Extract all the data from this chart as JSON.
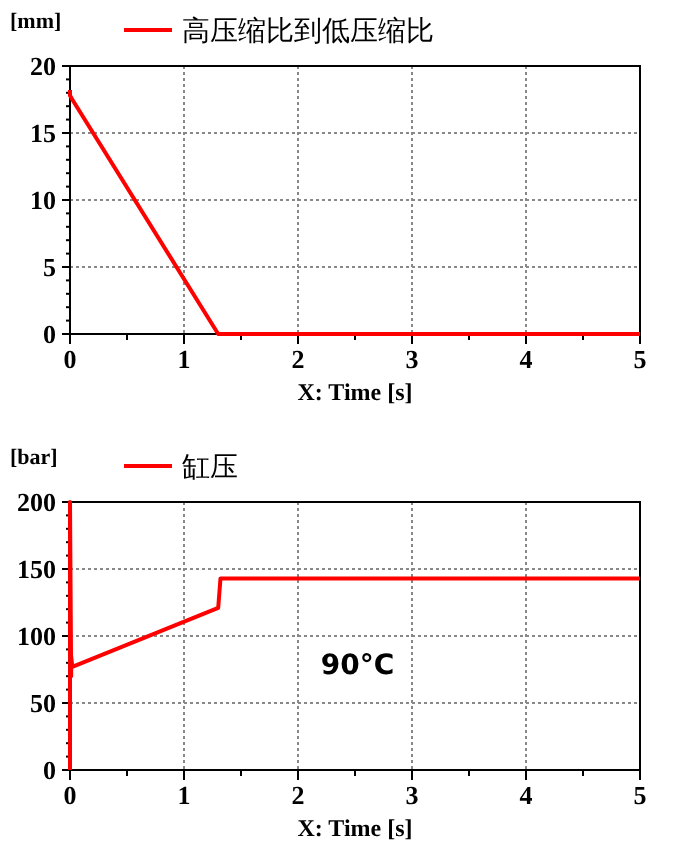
{
  "chart_data": [
    {
      "type": "line",
      "ylabel": "[mm]",
      "xlabel": "X: Time [s]",
      "legend": "top left",
      "series": [
        {
          "name": "高压缩比到低压缩比",
          "color": "#ff0000",
          "x": [
            0,
            0,
            0.02,
            1.3,
            5
          ],
          "values": [
            18.2,
            17.8,
            17.5,
            0,
            0
          ]
        }
      ],
      "xlim": [
        0,
        5
      ],
      "ylim": [
        0,
        20
      ],
      "xticks": [
        0,
        {
          "value": 0.5,
          "label": null
        },
        1,
        {
          "value": 1.5,
          "label": null
        },
        2,
        {
          "value": 2.5,
          "label": null
        },
        3,
        {
          "value": 3.5,
          "label": null
        },
        4,
        {
          "value": 4.5,
          "label": null
        },
        5
      ],
      "yticks": [
        0,
        {
          "value": 1,
          "label": null
        },
        {
          "value": 2,
          "label": null
        },
        {
          "value": 3,
          "label": null
        },
        {
          "value": 4,
          "label": null
        },
        5,
        {
          "value": 6,
          "label": null
        },
        {
          "value": 7,
          "label": null
        },
        {
          "value": 8,
          "label": null
        },
        {
          "value": 9,
          "label": null
        },
        10,
        {
          "value": 11,
          "label": null
        },
        {
          "value": 12,
          "label": null
        },
        {
          "value": 13,
          "label": null
        },
        {
          "value": 14,
          "label": null
        },
        15,
        {
          "value": 16,
          "label": null
        },
        {
          "value": 17,
          "label": null
        },
        {
          "value": 18,
          "label": null
        },
        {
          "value": 19,
          "label": null
        },
        20
      ],
      "grid": true,
      "line_style": "solid"
    },
    {
      "type": "line",
      "ylabel": "[bar]",
      "xlabel": "X: Time [s]",
      "legend": "top left",
      "annotations": [
        "90°C"
      ],
      "series": [
        {
          "name": "缸压",
          "color": "#ff0000",
          "x": [
            0,
            0,
            0.01,
            0.01,
            0.02,
            1.3,
            1.32,
            5
          ],
          "values": [
            0,
            200,
            70,
            85,
            77,
            121,
            143,
            143
          ]
        }
      ],
      "xlim": [
        0,
        5
      ],
      "ylim": [
        0,
        200
      ],
      "xticks": [
        0,
        {
          "value": 0.5,
          "label": null
        },
        1,
        {
          "value": 1.5,
          "label": null
        },
        2,
        {
          "value": 2.5,
          "label": null
        },
        3,
        {
          "value": 3.5,
          "label": null
        },
        4,
        {
          "value": 4.5,
          "label": null
        },
        5
      ],
      "yticks": [
        0,
        {
          "value": 10,
          "label": null
        },
        {
          "value": 20,
          "label": null
        },
        {
          "value": 30,
          "label": null
        },
        {
          "value": 40,
          "label": null
        },
        50,
        {
          "value": 60,
          "label": null
        },
        {
          "value": 70,
          "label": null
        },
        {
          "value": 80,
          "label": null
        },
        {
          "value": 90,
          "label": null
        },
        100,
        {
          "value": 110,
          "label": null
        },
        {
          "value": 120,
          "label": null
        },
        {
          "value": 130,
          "label": null
        },
        {
          "value": 140,
          "label": null
        },
        150,
        {
          "value": 160,
          "label": null
        },
        {
          "value": 170,
          "label": null
        },
        {
          "value": 180,
          "label": null
        },
        {
          "value": 190,
          "label": null
        },
        200
      ],
      "grid": true,
      "line_style": "solid"
    }
  ]
}
